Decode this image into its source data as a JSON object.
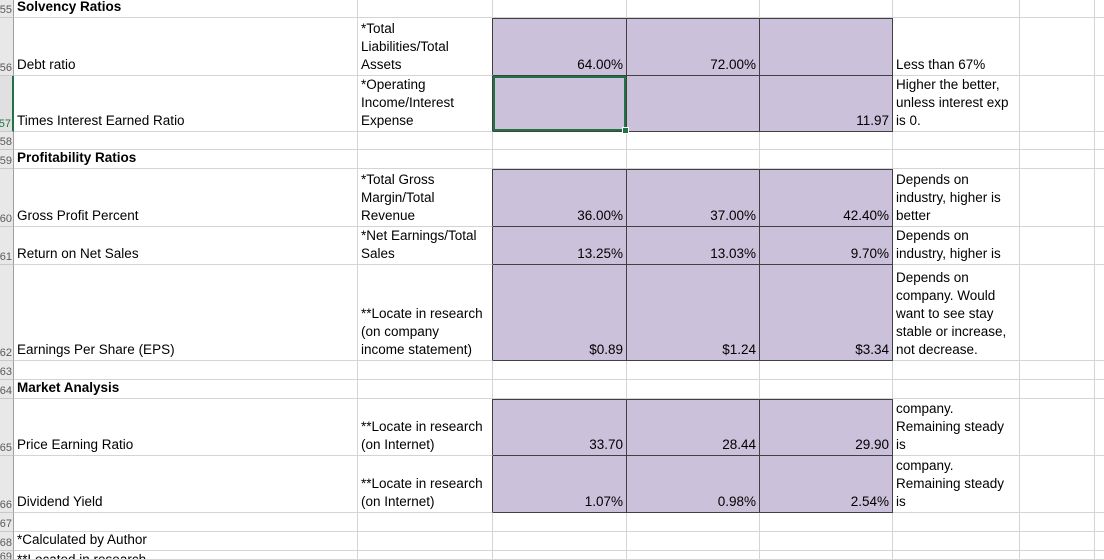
{
  "sheet": {
    "colors": {
      "cell_fill_purple": "#ccc1da",
      "selection_border_green": "#217346",
      "gridline": "#d4d4d4"
    },
    "selection": {
      "active_row": "57",
      "active_cell_note": "empty purple cell in first value column of row 57 has green selection border with fill handle"
    },
    "rows": [
      {
        "num": "55",
        "label": "Solvency Ratios"
      },
      {
        "num": "56",
        "label": "Debt ratio",
        "formula": "*Total\nLiabilities/Total\nAssets",
        "v1": "64.00%",
        "v2": "72.00%",
        "v3": "",
        "comment": "Less than 67%"
      },
      {
        "num": "57",
        "label": "Times Interest Earned Ratio",
        "formula": "*Operating\nIncome/Interest\nExpense",
        "v1": "",
        "v2": "",
        "v3": "11.97",
        "comment": "Higher the better,\nunless interest exp\nis 0."
      },
      {
        "num": "58"
      },
      {
        "num": "59",
        "label": "Profitability Ratios"
      },
      {
        "num": "60",
        "label": "Gross Profit Percent",
        "formula": "*Total Gross\nMargin/Total\nRevenue",
        "v1": "36.00%",
        "v2": "37.00%",
        "v3": "42.40%",
        "comment": "Depends on\nindustry, higher is\nbetter"
      },
      {
        "num": "61",
        "label": "Return on Net Sales",
        "formula": "*Net Earnings/Total\nSales",
        "v1": "13.25%",
        "v2": "13.03%",
        "v3": "9.70%",
        "comment": "Depends on\nindustry, higher is"
      },
      {
        "num": "62",
        "label": "Earnings Per Share (EPS)",
        "formula": "**Locate in research\n(on company\nincome statement)",
        "v1": "$0.89",
        "v2": "$1.24",
        "v3": "$3.34",
        "comment": "Depends on\ncompany. Would\nwant to see stay\nstable or increase,\nnot decrease."
      },
      {
        "num": "63"
      },
      {
        "num": "64",
        "label": "Market Analysis"
      },
      {
        "num": "65",
        "label": "Price Earning Ratio",
        "formula": "**Locate in research\n(on Internet)",
        "v1": "33.70",
        "v2": "28.44",
        "v3": "29.90",
        "comment": "Depends on\ncompany.\nRemaining steady is"
      },
      {
        "num": "66",
        "label": "Dividend Yield",
        "formula": "**Locate in research\n(on Internet)",
        "v1": "1.07%",
        "v2": "0.98%",
        "v3": "2.54%",
        "comment": "Depends on\ncompany.\nRemaining steady is"
      },
      {
        "num": "67"
      },
      {
        "num": "68",
        "label": "*Calculated by Author"
      },
      {
        "num": "69",
        "label": "**Located in research"
      }
    ]
  }
}
